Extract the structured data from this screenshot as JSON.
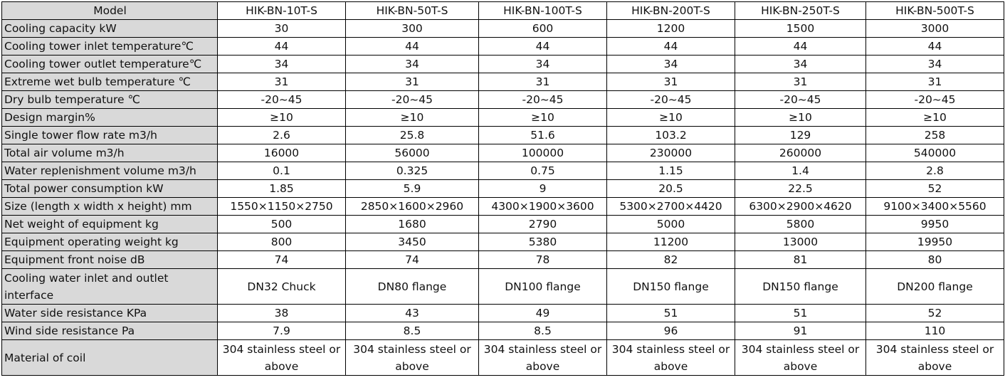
{
  "table": {
    "header_label": "Model",
    "models": [
      "HIK-BN-10T-S",
      "HIK-BN-50T-S",
      "HIK-BN-100T-S",
      "HIK-BN-200T-S",
      "HIK-BN-250T-S",
      "HIK-BN-500T-S"
    ],
    "rows": [
      {
        "label": "Cooling capacity kW",
        "values": [
          "30",
          "300",
          "600",
          "1200",
          "1500",
          "3000"
        ]
      },
      {
        "label": "Cooling tower inlet temperature℃",
        "values": [
          "44",
          "44",
          "44",
          "44",
          "44",
          "44"
        ]
      },
      {
        "label": "Cooling tower outlet temperature℃",
        "values": [
          "34",
          "34",
          "34",
          "34",
          "34",
          "34"
        ]
      },
      {
        "label": "Extreme wet bulb temperature ℃",
        "values": [
          "31",
          "31",
          "31",
          "31",
          "31",
          "31"
        ]
      },
      {
        "label": "Dry bulb temperature ℃",
        "values": [
          "-20~45",
          "-20~45",
          "-20~45",
          "-20~45",
          "-20~45",
          "-20~45"
        ]
      },
      {
        "label": "Design margin%",
        "values": [
          "≥10",
          "≥10",
          "≥10",
          "≥10",
          "≥10",
          "≥10"
        ]
      },
      {
        "label": "Single tower flow rate m3/h",
        "values": [
          "2.6",
          "25.8",
          "51.6",
          "103.2",
          "129",
          "258"
        ]
      },
      {
        "label": "Total air volume m3/h",
        "values": [
          "16000",
          "56000",
          "100000",
          "230000",
          "260000",
          "540000"
        ]
      },
      {
        "label": "Water replenishment volume m3/h",
        "values": [
          "0.1",
          "0.325",
          "0.75",
          "1.15",
          "1.4",
          "2.8"
        ]
      },
      {
        "label": "Total power consumption kW",
        "values": [
          "1.85",
          "5.9",
          "9",
          "20.5",
          "22.5",
          "52"
        ]
      },
      {
        "label": "Size (length x width x height) mm",
        "values": [
          "1550×1150×2750",
          "2850×1600×2960",
          "4300×1900×3600",
          "5300×2700×4420",
          "6300×2900×4620",
          "9100×3400×5560"
        ]
      },
      {
        "label": "Net weight of equipment kg",
        "values": [
          "500",
          "1680",
          "2790",
          "5000",
          "5800",
          "9950"
        ]
      },
      {
        "label": "Equipment operating weight kg",
        "values": [
          "800",
          "3450",
          "5380",
          "11200",
          "13000",
          "19950"
        ]
      },
      {
        "label": "Equipment front noise dB",
        "values": [
          "74",
          "74",
          "78",
          "82",
          "81",
          "80"
        ]
      },
      {
        "label": "Cooling water inlet and outlet interface",
        "tall": true,
        "values": [
          "DN32 Chuck",
          "DN80  flange",
          "DN100  flange",
          "DN150  flange",
          "DN150  flange",
          "DN200 flange"
        ]
      },
      {
        "label": "Water side resistance KPa",
        "values": [
          "38",
          "43",
          "49",
          "51",
          "51",
          "52"
        ]
      },
      {
        "label": "Wind side resistance Pa",
        "values": [
          "7.9",
          "8.5",
          "8.5",
          "96",
          "91",
          "110"
        ]
      },
      {
        "label": "Material of coil",
        "tall": true,
        "values": [
          "304 stainless steel or above",
          "304 stainless steel or above",
          "304 stainless steel or above",
          "304 stainless steel or above",
          "304 stainless steel or above",
          "304 stainless steel or above"
        ]
      }
    ]
  }
}
